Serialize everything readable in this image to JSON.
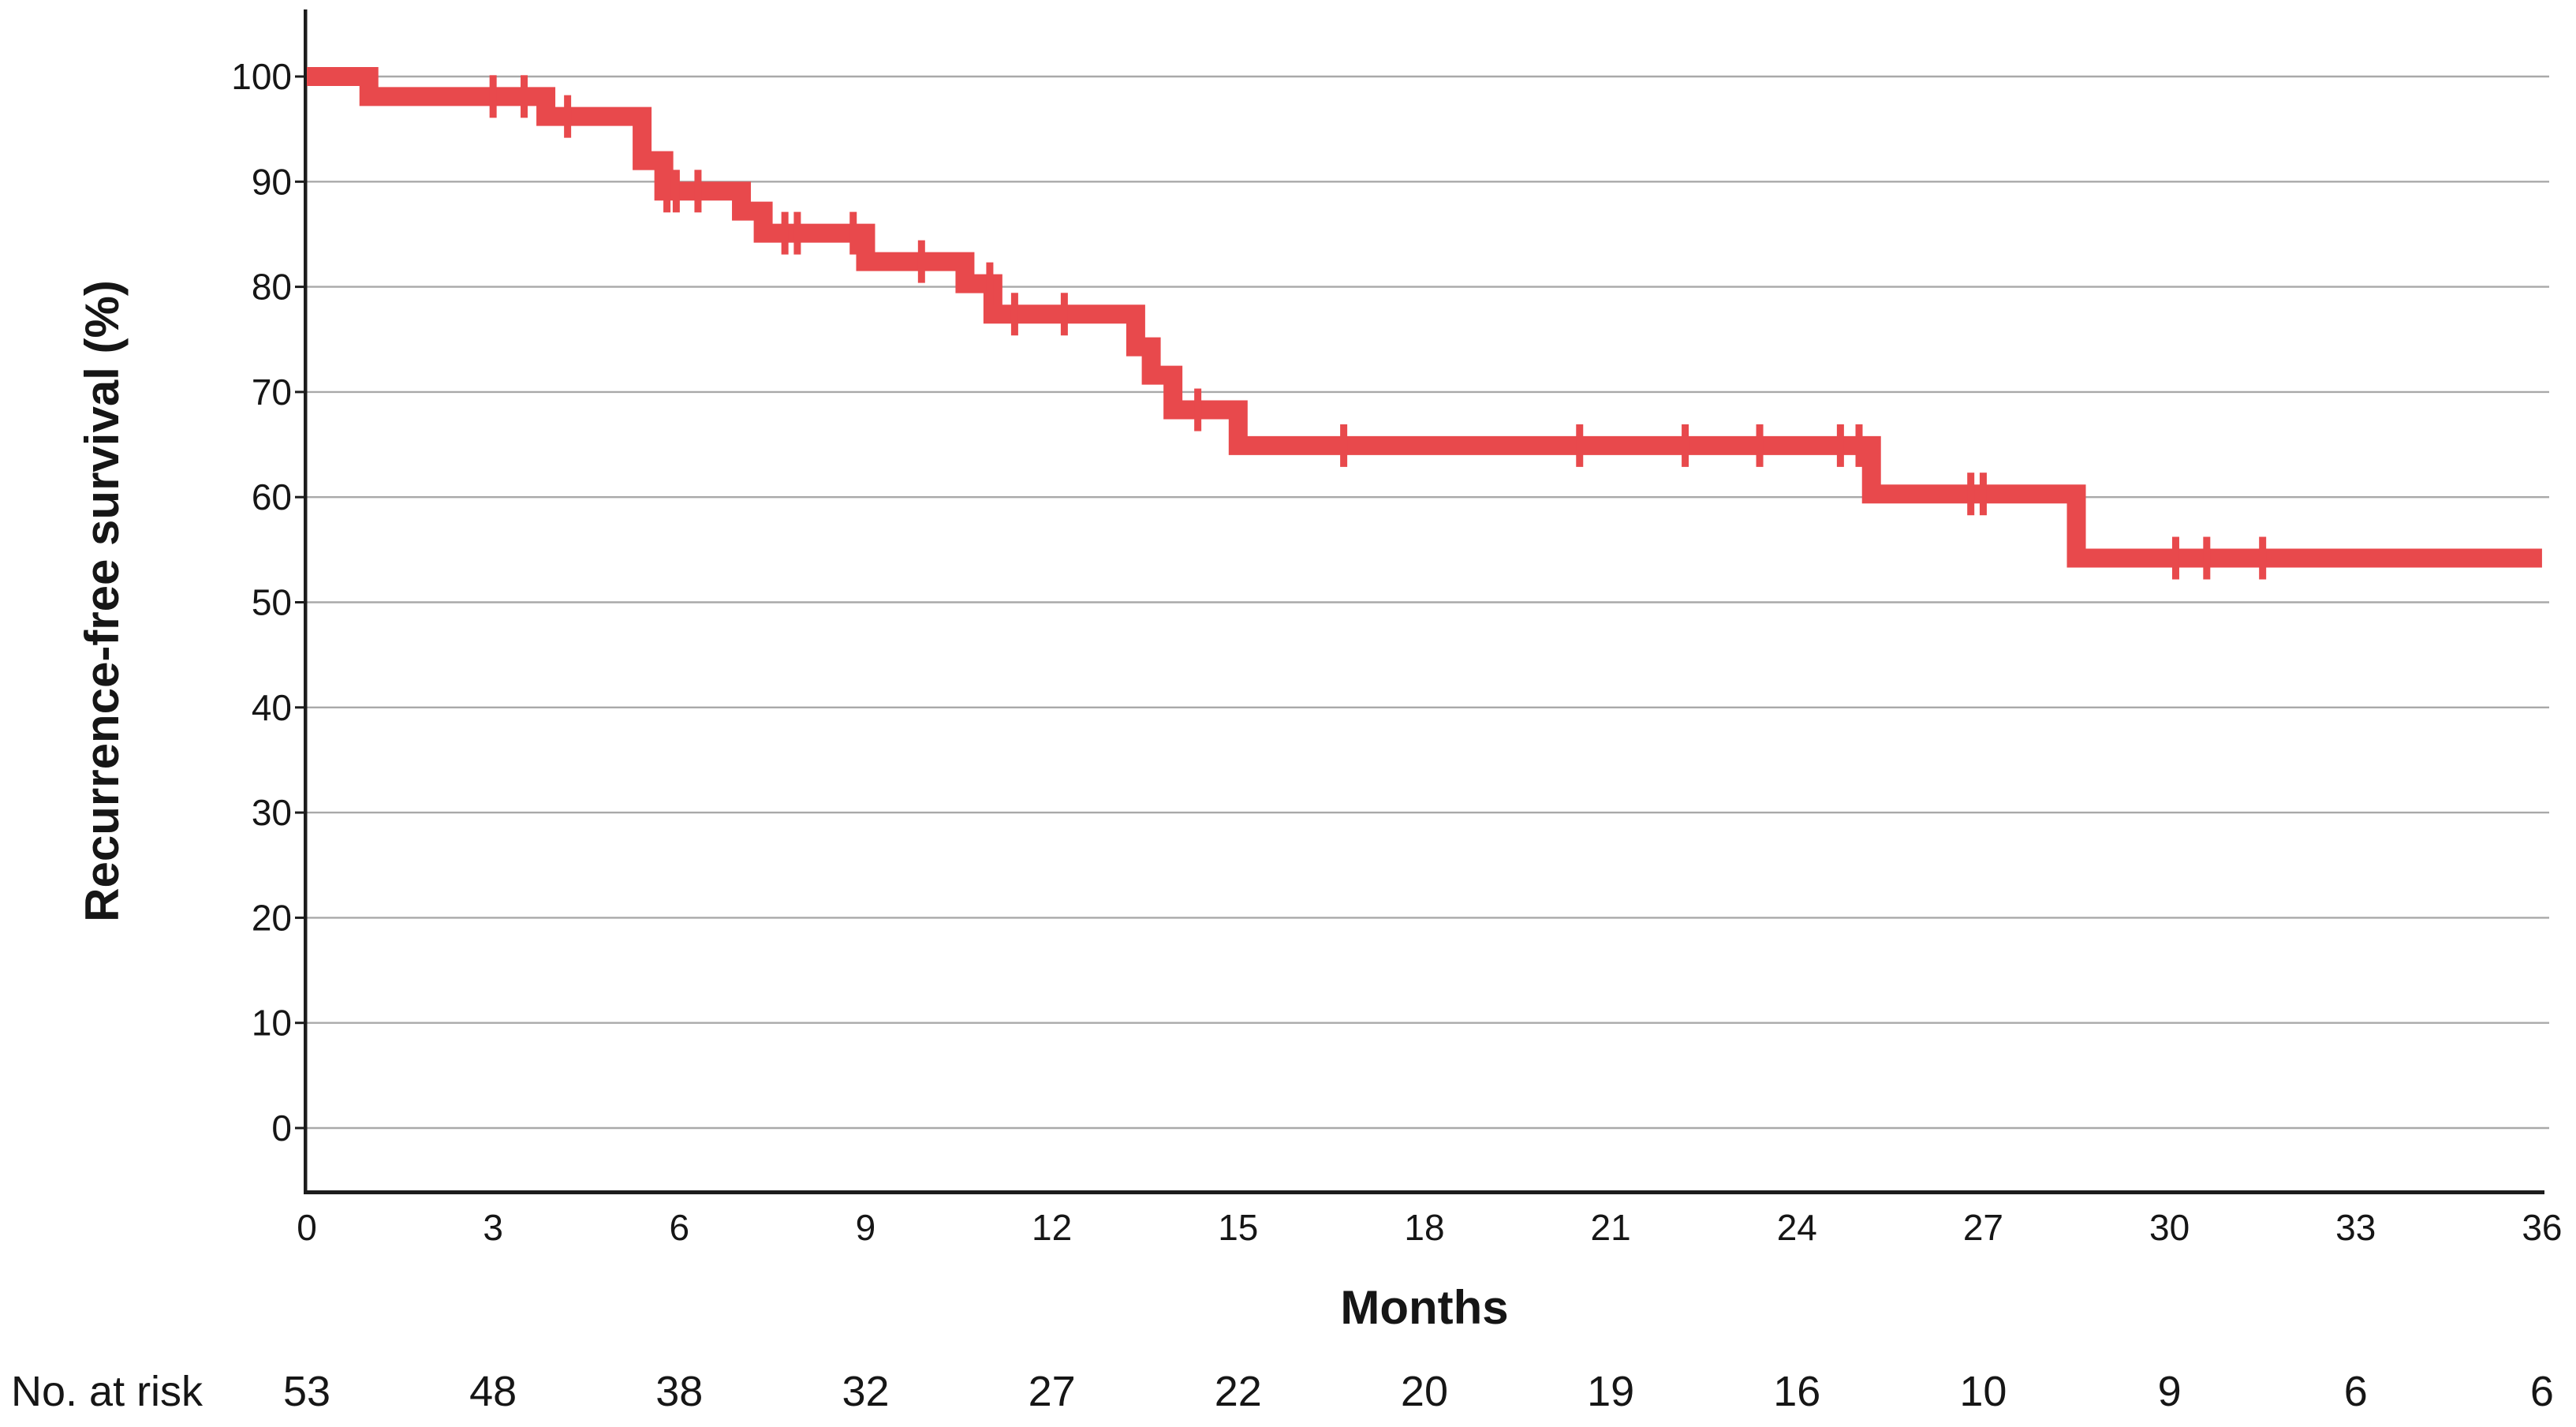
{
  "figure": {
    "background": "#ffffff"
  },
  "chart_data": {
    "type": "line",
    "subtype": "kaplan-meier-step-curve",
    "title": "",
    "xlabel": "Months",
    "ylabel": "Recurrence-free survival (%)",
    "xlim": [
      0,
      36
    ],
    "ylim": [
      0,
      100
    ],
    "x_ticks": [
      0,
      3,
      6,
      9,
      12,
      15,
      18,
      21,
      24,
      27,
      30,
      33,
      36
    ],
    "y_ticks": [
      0,
      10,
      20,
      30,
      40,
      50,
      60,
      70,
      80,
      90,
      100
    ],
    "grid": "horizontal",
    "legend_position": "none",
    "colors": {
      "curve": "#e8494c",
      "grid": "#a9a9a9",
      "axis": "#1c1c1c",
      "text": "#161616"
    },
    "series": [
      {
        "name": "Recurrence-free survival",
        "color": "#e8494c",
        "steps": [
          [
            0,
            100
          ],
          [
            1.0,
            98.1
          ],
          [
            3.85,
            96.2
          ],
          [
            5.4,
            92.0
          ],
          [
            5.75,
            89.1
          ],
          [
            7.0,
            87.2
          ],
          [
            7.35,
            85.1
          ],
          [
            9.0,
            82.4
          ],
          [
            10.6,
            80.3
          ],
          [
            11.05,
            77.4
          ],
          [
            13.35,
            74.3
          ],
          [
            13.6,
            71.6
          ],
          [
            13.95,
            68.3
          ],
          [
            15.0,
            64.9
          ],
          [
            25.2,
            60.3
          ],
          [
            28.5,
            54.2
          ]
        ],
        "end_time": 36,
        "censor_marks": [
          [
            3.0,
            98.1
          ],
          [
            3.5,
            98.1
          ],
          [
            4.2,
            96.2
          ],
          [
            5.8,
            89.1
          ],
          [
            5.95,
            89.1
          ],
          [
            6.3,
            89.1
          ],
          [
            7.7,
            85.1
          ],
          [
            7.9,
            85.1
          ],
          [
            8.8,
            85.1
          ],
          [
            9.9,
            82.4
          ],
          [
            11.0,
            80.3
          ],
          [
            11.4,
            77.4
          ],
          [
            12.2,
            77.4
          ],
          [
            14.35,
            68.3
          ],
          [
            16.7,
            64.9
          ],
          [
            20.5,
            64.9
          ],
          [
            22.2,
            64.9
          ],
          [
            23.4,
            64.9
          ],
          [
            24.7,
            64.9
          ],
          [
            25.0,
            64.9
          ],
          [
            26.8,
            60.3
          ],
          [
            27.0,
            60.3
          ],
          [
            30.1,
            54.2
          ],
          [
            30.6,
            54.2
          ],
          [
            31.5,
            54.2
          ]
        ]
      }
    ],
    "risk_table": {
      "label": "No. at risk",
      "times": [
        0,
        3,
        6,
        9,
        12,
        15,
        18,
        21,
        24,
        27,
        30,
        33,
        36
      ],
      "values": [
        53,
        48,
        38,
        32,
        27,
        22,
        20,
        19,
        16,
        10,
        9,
        6,
        6
      ]
    }
  }
}
